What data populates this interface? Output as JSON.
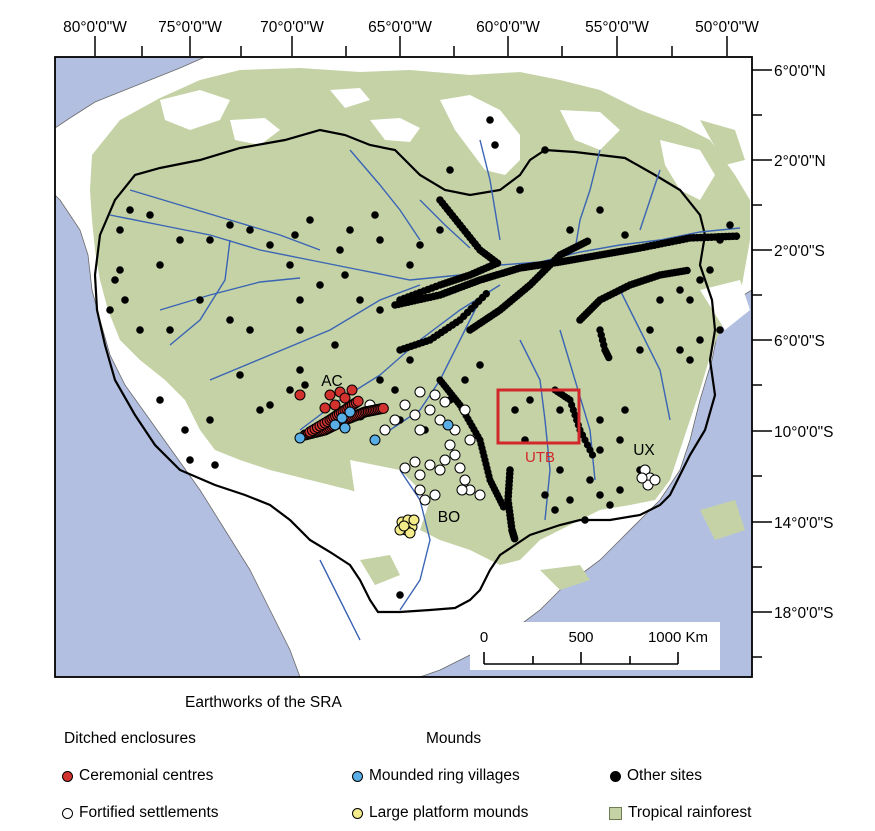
{
  "colors": {
    "ocean": "#b3bfe0",
    "land": "#ffffff",
    "rainforest": "#c4d2a6",
    "river": "#3a64b4",
    "utb_box": "#d2282c",
    "ceremonial": "#d2322d",
    "fortified": "#ffffff",
    "ring_village": "#5aaee6",
    "platform": "#f4ec8a",
    "other": "#000000"
  },
  "map": {
    "lon_labels": [
      "80°0'0\"W",
      "75°0'0\"W",
      "70°0'0\"W",
      "65°0'0\"W",
      "60°0'0\"W",
      "55°0'0\"W",
      "50°0'0\"W"
    ],
    "lat_labels": [
      "6°0'0\"N",
      "2°0'0\"N",
      "2°0'0\"S",
      "6°0'0\"S",
      "10°0'0\"S",
      "14°0'0\"S",
      "18°0'0\"S"
    ],
    "region_labels": {
      "ac": "AC",
      "bo": "BO",
      "ux": "UX",
      "utb": "UTB"
    },
    "scale_bar": {
      "labels": [
        "0",
        "500",
        "1000 Km"
      ]
    }
  },
  "legend": {
    "title": "Earthworks of the SRA",
    "group_ditched": "Ditched enclosures",
    "group_mounds": "Mounds",
    "items": {
      "ceremonial": "Ceremonial centres",
      "fortified": "Fortified settlements",
      "ring_village": "Mounded ring villages",
      "platform": "Large platform mounds",
      "other": "Other sites",
      "rainforest": "Tropical rainforest"
    }
  }
}
